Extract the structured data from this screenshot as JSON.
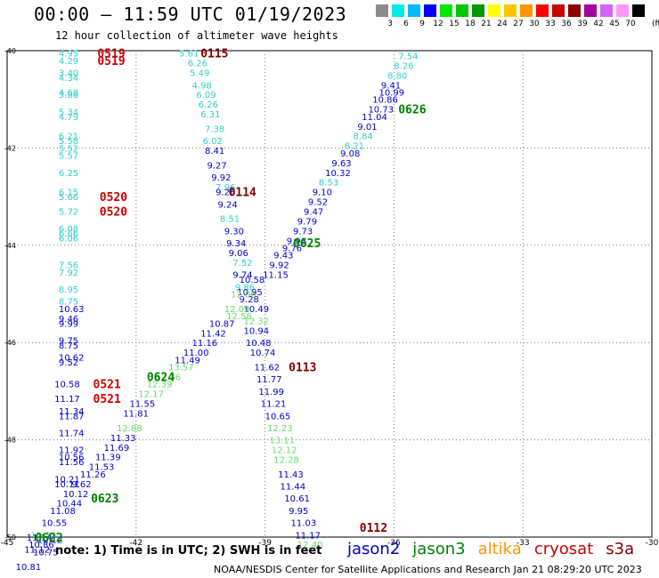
{
  "header": {
    "title": "00:00 – 11:59 UTC 01/19/2023",
    "subtitle": "12 hour collection of altimeter wave heights",
    "unit": "(ft)"
  },
  "legend": [
    {
      "label": "3",
      "color": "#8c8c8c"
    },
    {
      "label": "6",
      "color": "#00e8e8"
    },
    {
      "label": "9",
      "color": "#00b8ff"
    },
    {
      "label": "12",
      "color": "#0000ff"
    },
    {
      "label": "15",
      "color": "#00e600"
    },
    {
      "label": "18",
      "color": "#00c800"
    },
    {
      "label": "21",
      "color": "#009600"
    },
    {
      "label": "24",
      "color": "#ffff00"
    },
    {
      "label": "27",
      "color": "#ffc800"
    },
    {
      "label": "30",
      "color": "#ff9600"
    },
    {
      "label": "33",
      "color": "#ff0000"
    },
    {
      "label": "36",
      "color": "#c80000"
    },
    {
      "label": "39",
      "color": "#8c0000"
    },
    {
      "label": "42",
      "color": "#a000a0"
    },
    {
      "label": "45",
      "color": "#d264ff"
    },
    {
      "label": "70",
      "color": "#ff96ff"
    },
    {
      "label": "",
      "color": "#000000"
    }
  ],
  "footer": {
    "note": "note:  1) Time is in UTC;  2) SWH is in feet",
    "credit": "NOAA/NESDIS Center for Satellite Applications and Research     Jan 21 08:29:20 UTC 2023",
    "satellites": [
      {
        "name": "jason2",
        "color": "#0000cc"
      },
      {
        "name": "jason3",
        "color": "#008000"
      },
      {
        "name": "altika",
        "color": "#ff9600"
      },
      {
        "name": "cryosat",
        "color": "#cc0000"
      },
      {
        "name": "s3a",
        "color": "#800000"
      }
    ]
  },
  "chart_data": {
    "type": "scatter",
    "xlim": [
      -45,
      -30
    ],
    "ylim": [
      -50,
      -40
    ],
    "xticks": [
      "-45",
      "-42",
      "-39",
      "-36",
      "-33",
      "-30"
    ],
    "yticks": [
      "-40",
      "-42",
      "-44",
      "-46",
      "-48",
      "-50"
    ],
    "grid": true,
    "series": [
      {
        "name": "track_A",
        "color_cycle": "light",
        "points": [
          [
            -43.8,
            -40.05,
            "4.95"
          ],
          [
            -43.8,
            -40.2,
            "4.29"
          ],
          [
            -43.8,
            -40.45,
            "3.40"
          ],
          [
            -43.8,
            -40.55,
            "4.34"
          ],
          [
            -43.8,
            -40.85,
            "4.68"
          ],
          [
            -43.8,
            -40.9,
            "3.86"
          ],
          [
            -43.8,
            -41.25,
            "5.34"
          ],
          [
            -43.8,
            -41.35,
            "4.79"
          ],
          [
            -43.8,
            -41.75,
            "6.21"
          ],
          [
            -43.8,
            -41.85,
            "5.58"
          ],
          [
            -43.8,
            -42.0,
            "5.52"
          ],
          [
            -43.8,
            -42.15,
            "5.57"
          ],
          [
            -43.8,
            -42.5,
            "6.25"
          ],
          [
            -43.8,
            -42.9,
            "6.15"
          ],
          [
            -43.8,
            -43.0,
            "5.66"
          ],
          [
            -43.8,
            -43.3,
            "5.72"
          ],
          [
            -43.8,
            -43.65,
            "6.08"
          ],
          [
            -43.8,
            -43.75,
            "6.66"
          ],
          [
            -43.8,
            -43.85,
            "6.06"
          ],
          [
            -43.8,
            -44.4,
            "7.56"
          ],
          [
            -43.8,
            -44.55,
            "7.92"
          ],
          [
            -43.8,
            -44.9,
            "8.95"
          ],
          [
            -43.8,
            -45.15,
            "8.75"
          ]
        ]
      },
      {
        "name": "track_A_deep",
        "color_cycle": "dark",
        "points": [
          [
            -43.8,
            -45.3,
            "10.63"
          ],
          [
            -43.8,
            -45.5,
            "9.46"
          ],
          [
            -43.8,
            -45.6,
            "9.99"
          ],
          [
            -43.8,
            -45.95,
            "9.75"
          ],
          [
            -43.8,
            -46.05,
            "8.75"
          ],
          [
            -43.8,
            -46.3,
            "10.62"
          ],
          [
            -43.8,
            -46.4,
            "9.52"
          ],
          [
            -43.9,
            -46.85,
            "10.58"
          ],
          [
            -43.9,
            -47.15,
            "11.17"
          ],
          [
            -43.8,
            -47.4,
            "11.34"
          ],
          [
            -43.8,
            -47.5,
            "11.87"
          ],
          [
            -43.8,
            -47.85,
            "11.74"
          ],
          [
            -43.8,
            -48.2,
            "11.92"
          ],
          [
            -43.8,
            -48.35,
            "10.56"
          ],
          [
            -43.8,
            -48.45,
            "11.56"
          ],
          [
            -43.9,
            -48.8,
            "10.21"
          ],
          [
            -43.9,
            -48.9,
            "10.11"
          ]
        ]
      }
    ]
  },
  "pass_labels": [
    {
      "text": "0519",
      "lon": -42.9,
      "lat": -40.05,
      "color": "#cc0000"
    },
    {
      "text": "0519",
      "lon": -42.9,
      "lat": -40.2,
      "color": "#cc0000"
    },
    {
      "text": "0115",
      "lon": -40.5,
      "lat": -40.05,
      "color": "#800000"
    },
    {
      "text": "0626",
      "lon": -35.9,
      "lat": -41.2,
      "color": "#008000"
    },
    {
      "text": "0114",
      "lon": -39.85,
      "lat": -42.9,
      "color": "#800000"
    },
    {
      "text": "0520",
      "lon": -42.85,
      "lat": -43.0,
      "color": "#cc0000"
    },
    {
      "text": "0520",
      "lon": -42.85,
      "lat": -43.3,
      "color": "#cc0000"
    },
    {
      "text": "0625",
      "lon": -38.35,
      "lat": -43.95,
      "color": "#008000"
    },
    {
      "text": "0113",
      "lon": -38.45,
      "lat": -46.5,
      "color": "#800000"
    },
    {
      "text": "0624",
      "lon": -41.75,
      "lat": -46.7,
      "color": "#008000"
    },
    {
      "text": "0521",
      "lon": -43.0,
      "lat": -46.85,
      "color": "#cc0000"
    },
    {
      "text": "0521",
      "lon": -43.0,
      "lat": -47.15,
      "color": "#cc0000"
    },
    {
      "text": "0623",
      "lon": -43.05,
      "lat": -49.2,
      "color": "#008000"
    },
    {
      "text": "0112",
      "lon": -36.8,
      "lat": -49.8,
      "color": "#800000"
    },
    {
      "text": "0622",
      "lon": -44.35,
      "lat": -50.0,
      "color": "#008000"
    }
  ],
  "tracks": [
    {
      "id": "descending_0115_0112",
      "points": [
        [
          -41.0,
          -40.05,
          "5.61",
          "#33cccc"
        ],
        [
          -40.8,
          -40.25,
          "6.26",
          "#33cccc"
        ],
        [
          -40.75,
          -40.45,
          "5.49",
          "#33cccc"
        ],
        [
          -40.7,
          -40.7,
          "4.98",
          "#33cccc"
        ],
        [
          -40.6,
          -40.9,
          "6.09",
          "#33cccc"
        ],
        [
          -40.55,
          -41.1,
          "6.26",
          "#33cccc"
        ],
        [
          -40.5,
          -41.3,
          "6.31",
          "#33cccc"
        ],
        [
          -40.4,
          -41.6,
          "7.38",
          "#33cccc"
        ],
        [
          -40.45,
          -41.85,
          "6.02",
          "#33cccc"
        ],
        [
          -40.4,
          -42.05,
          "8.41",
          "#0000cc"
        ],
        [
          -40.35,
          -42.35,
          "9.27",
          "#0000cc"
        ],
        [
          -40.25,
          -42.6,
          "9.92",
          "#0000cc"
        ],
        [
          -40.15,
          -42.8,
          "7.96",
          "#33cccc"
        ],
        [
          -40.15,
          -42.9,
          "9.26",
          "#0000cc"
        ],
        [
          -40.1,
          -43.15,
          "9.24",
          "#0000cc"
        ],
        [
          -40.05,
          -43.45,
          "8.51",
          "#33cccc"
        ],
        [
          -39.95,
          -43.7,
          "9.30",
          "#0000cc"
        ],
        [
          -39.9,
          -43.95,
          "9.34",
          "#0000cc"
        ],
        [
          -39.85,
          -44.15,
          "9.06",
          "#0000cc"
        ],
        [
          -39.75,
          -44.35,
          "7.52",
          "#33cccc"
        ],
        [
          -39.75,
          -44.6,
          "9.74",
          "#0000cc"
        ],
        [
          -39.6,
          -44.7,
          "10.58",
          "#0000cc"
        ],
        [
          -39.7,
          -44.85,
          "9.86",
          "#33cccc"
        ],
        [
          -39.65,
          -44.95,
          "10.95",
          "#0000cc"
        ],
        [
          -39.6,
          -45.1,
          "9.28",
          "#0000cc"
        ],
        [
          -39.5,
          -45.3,
          "10.49",
          "#0000cc"
        ],
        [
          -39.5,
          -45.75,
          "10.94",
          "#0000cc"
        ],
        [
          -39.45,
          -46.0,
          "10.48",
          "#0000cc"
        ],
        [
          -39.35,
          -46.2,
          "10.74",
          "#0000cc"
        ],
        [
          -39.25,
          -46.5,
          "11.62",
          "#0000cc"
        ],
        [
          -39.2,
          -46.75,
          "11.77",
          "#0000cc"
        ],
        [
          -39.15,
          -47.0,
          "11.99",
          "#0000cc"
        ],
        [
          -39.1,
          -47.25,
          "11.21",
          "#0000cc"
        ],
        [
          -39.0,
          -47.5,
          "10.65",
          "#0000cc"
        ],
        [
          -38.95,
          -47.75,
          "12.23",
          "#66dd66"
        ],
        [
          -38.9,
          -48.0,
          "13.11",
          "#66dd66"
        ],
        [
          -38.85,
          -48.2,
          "12.12",
          "#66dd66"
        ],
        [
          -38.8,
          -48.4,
          "12.28",
          "#66dd66"
        ],
        [
          -38.7,
          -48.7,
          "11.43",
          "#0000cc"
        ],
        [
          -38.65,
          -48.95,
          "11.44",
          "#0000cc"
        ],
        [
          -38.55,
          -49.2,
          "10.61",
          "#0000cc"
        ],
        [
          -38.45,
          -49.45,
          "9.95",
          "#0000cc"
        ],
        [
          -38.4,
          -49.7,
          "11.03",
          "#0000cc"
        ],
        [
          -38.3,
          -49.95,
          "11.17",
          "#0000cc"
        ],
        [
          -38.25,
          -50.15,
          "12.40",
          "#66dd66"
        ]
      ]
    },
    {
      "id": "ascending_0626_0622",
      "points": [
        [
          -35.9,
          -40.1,
          "7.54",
          "#33cccc"
        ],
        [
          -36.0,
          -40.3,
          "8.26",
          "#33cccc"
        ],
        [
          -36.15,
          -40.5,
          "8.80",
          "#33cccc"
        ],
        [
          -36.3,
          -40.7,
          "9.41",
          "#0000cc"
        ],
        [
          -36.35,
          -40.85,
          "10.99",
          "#0000cc"
        ],
        [
          -36.5,
          -41.0,
          "10.86",
          "#0000cc"
        ],
        [
          -36.6,
          -41.2,
          "10.73",
          "#0000cc"
        ],
        [
          -36.75,
          -41.35,
          "11.04",
          "#0000cc"
        ],
        [
          -36.85,
          -41.55,
          "9.01",
          "#0000cc"
        ],
        [
          -36.95,
          -41.75,
          "8.84",
          "#33cccc"
        ],
        [
          -37.15,
          -41.95,
          "8.21",
          "#33cccc"
        ],
        [
          -37.25,
          -42.1,
          "9.08",
          "#0000cc"
        ],
        [
          -37.45,
          -42.3,
          "9.63",
          "#0000cc"
        ],
        [
          -37.6,
          -42.5,
          "10.32",
          "#0000cc"
        ],
        [
          -37.75,
          -42.7,
          "8.53",
          "#33cccc"
        ],
        [
          -37.9,
          -42.9,
          "9.10",
          "#0000cc"
        ],
        [
          -38.0,
          -43.1,
          "9.52",
          "#0000cc"
        ],
        [
          -38.1,
          -43.3,
          "9.47",
          "#0000cc"
        ],
        [
          -38.25,
          -43.5,
          "9.79",
          "#0000cc"
        ],
        [
          -38.35,
          -43.7,
          "9.73",
          "#0000cc"
        ],
        [
          -38.5,
          -43.9,
          "9.96",
          "#0000cc"
        ],
        [
          -38.6,
          -44.05,
          "9.76",
          "#0000cc"
        ],
        [
          -38.8,
          -44.2,
          "9.43",
          "#0000cc"
        ],
        [
          -38.9,
          -44.4,
          "9.92",
          "#0000cc"
        ],
        [
          -39.05,
          -44.6,
          "11.15",
          "#0000cc"
        ],
        [
          -39.8,
          -45.0,
          "12.06",
          "#66dd66"
        ],
        [
          -39.95,
          -45.3,
          "12.09",
          "#66dd66"
        ],
        [
          -39.9,
          -45.45,
          "12.58",
          "#66dd66"
        ],
        [
          -39.5,
          -45.55,
          "12.32",
          "#66dd66"
        ],
        [
          -40.3,
          -45.6,
          "10.87",
          "#0000cc"
        ],
        [
          -40.5,
          -45.8,
          "11.42",
          "#0000cc"
        ],
        [
          -40.7,
          -46.0,
          "11.16",
          "#0000cc"
        ],
        [
          -40.9,
          -46.2,
          "11.00",
          "#0000cc"
        ],
        [
          -41.1,
          -46.35,
          "11.49",
          "#0000cc"
        ],
        [
          -41.25,
          -46.5,
          "13.57",
          "#66dd66"
        ],
        [
          -41.55,
          -46.7,
          "12.36",
          "#66dd66"
        ],
        [
          -41.75,
          -46.85,
          "12.39",
          "#66dd66"
        ],
        [
          -41.95,
          -47.05,
          "12.17",
          "#66dd66"
        ],
        [
          -42.15,
          -47.25,
          "11.55",
          "#0000cc"
        ],
        [
          -42.3,
          -47.45,
          "11.81",
          "#0000cc"
        ],
        [
          -42.45,
          -47.75,
          "12.88",
          "#66dd66"
        ],
        [
          -42.6,
          -47.95,
          "11.33",
          "#0000cc"
        ],
        [
          -42.75,
          -48.15,
          "11.69",
          "#0000cc"
        ],
        [
          -42.95,
          -48.35,
          "11.39",
          "#0000cc"
        ],
        [
          -43.1,
          -48.55,
          "11.53",
          "#0000cc"
        ],
        [
          -43.3,
          -48.7,
          "11.26",
          "#0000cc"
        ],
        [
          -43.5,
          -48.9,
          "9.62",
          "#0000cc"
        ],
        [
          -43.7,
          -49.1,
          "10.12",
          "#0000cc"
        ],
        [
          -43.85,
          -49.3,
          "10.44",
          "#0000cc"
        ],
        [
          -44.0,
          -49.45,
          "11.08",
          "#0000cc"
        ],
        [
          -44.2,
          -49.7,
          "10.55",
          "#0000cc"
        ],
        [
          -44.45,
          -49.95,
          "12.30",
          "#66dd66"
        ],
        [
          -44.55,
          -50.0,
          "11.14",
          "#0000cc"
        ],
        [
          -44.3,
          -50.05,
          "10.12",
          "#0000cc"
        ],
        [
          -44.5,
          -50.15,
          "10.86",
          "#0000cc"
        ],
        [
          -44.4,
          -50.3,
          "10.75",
          "#0000cc"
        ],
        [
          -44.6,
          -50.25,
          "11.12",
          "#0000cc"
        ],
        [
          -44.8,
          -50.6,
          "10.81",
          "#0000cc"
        ]
      ]
    }
  ]
}
